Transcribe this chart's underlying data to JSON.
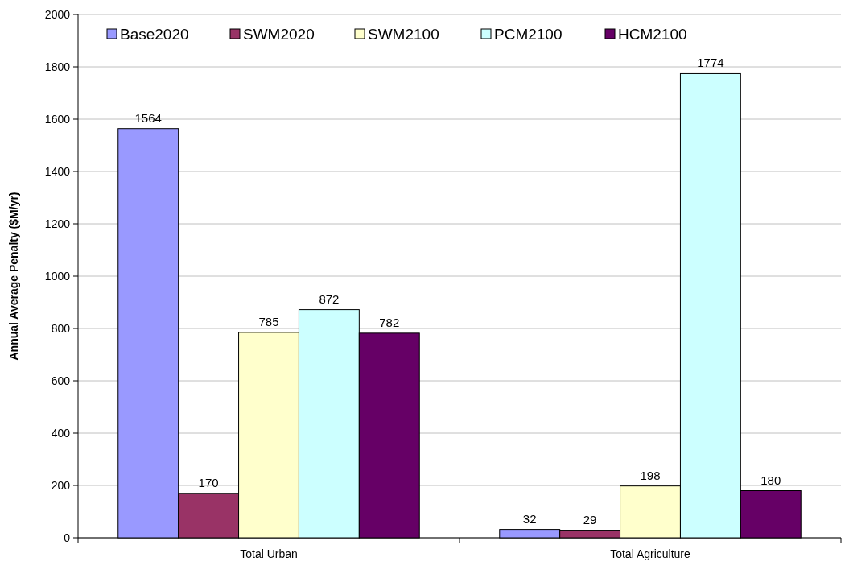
{
  "chart_data": {
    "type": "bar",
    "ylabel": "Annual Average Penalty ($M/yr)",
    "categories": [
      "Total Urban",
      "Total Agriculture"
    ],
    "series": [
      {
        "name": "Base2020",
        "color": "#9999ff",
        "values": [
          1564,
          32
        ]
      },
      {
        "name": "SWM2020",
        "color": "#993366",
        "values": [
          170,
          29
        ]
      },
      {
        "name": "SWM2100",
        "color": "#ffffcc",
        "values": [
          785,
          198
        ]
      },
      {
        "name": "PCM2100",
        "color": "#ccffff",
        "values": [
          872,
          1774
        ]
      },
      {
        "name": "HCM2100",
        "color": "#660066",
        "values": [
          782,
          180
        ]
      }
    ],
    "ylim": [
      0,
      2000
    ],
    "yticks": [
      0,
      200,
      400,
      600,
      800,
      1000,
      1200,
      1400,
      1600,
      1800,
      2000
    ],
    "grid": "y",
    "legend": "top left",
    "data_labels": true
  }
}
